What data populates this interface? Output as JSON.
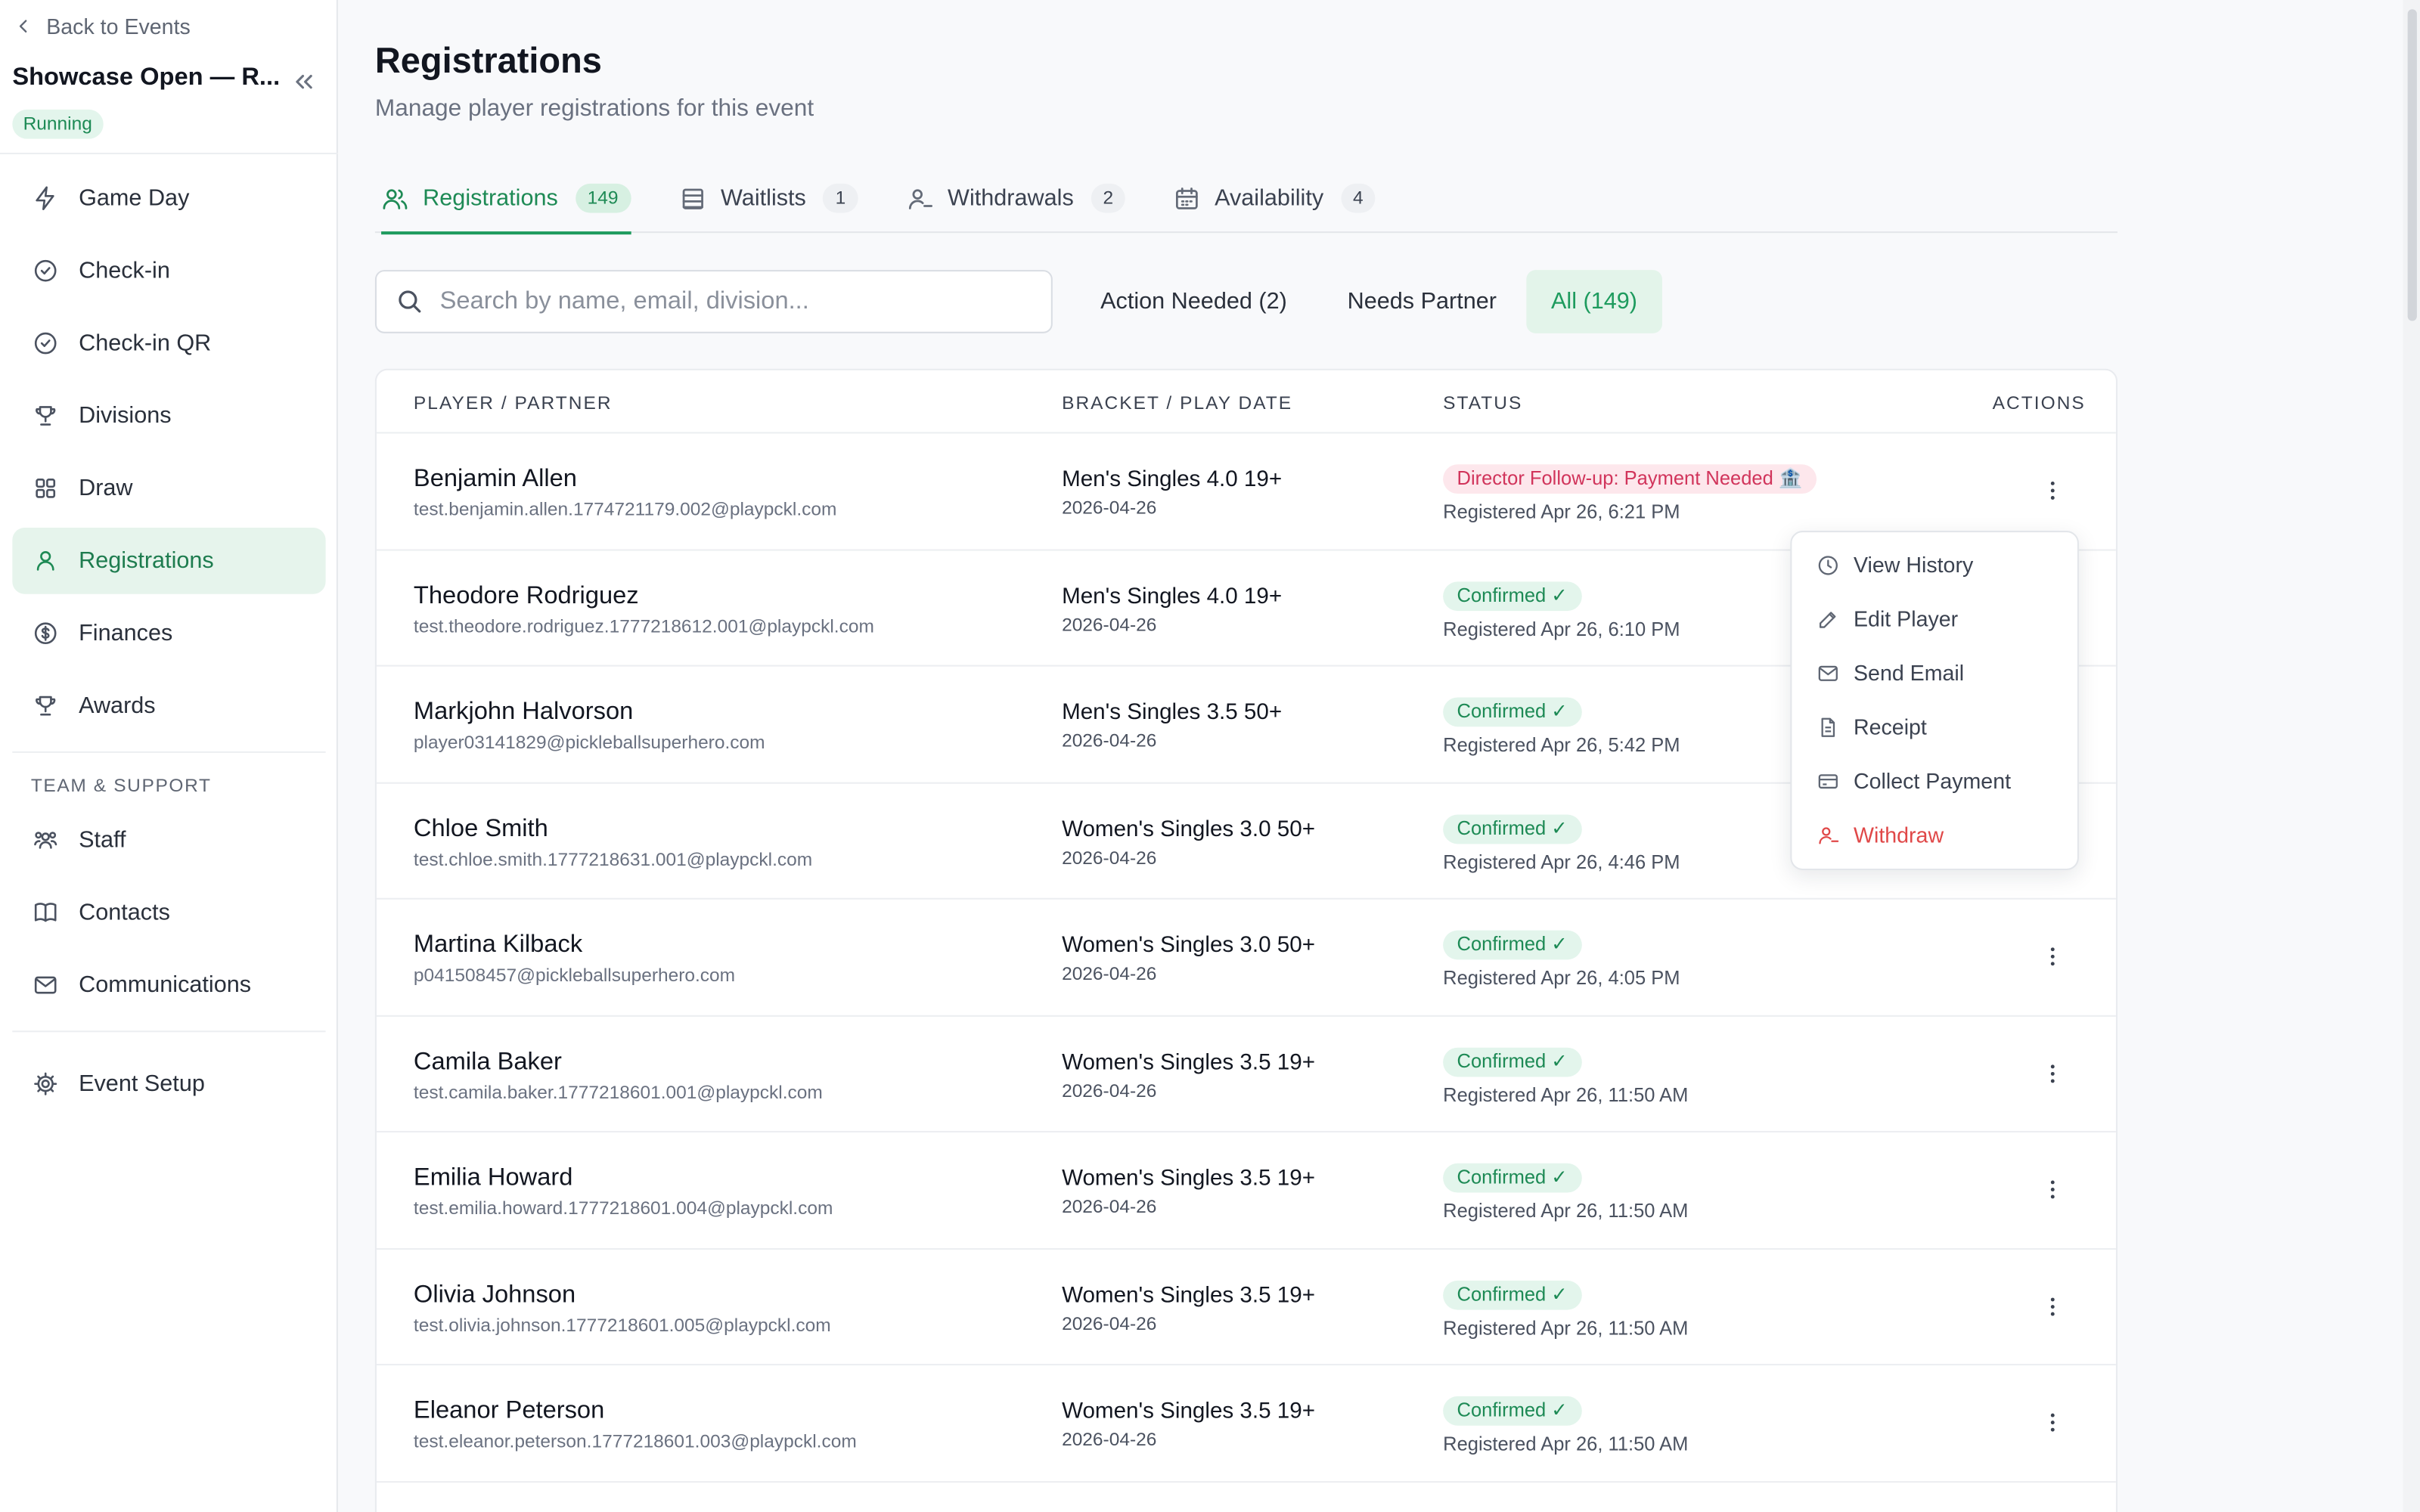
{
  "sidebar": {
    "back_label": "Back to Events",
    "event_title": "Showcase Open — R...",
    "event_status": "Running",
    "section_label": "TEAM & SUPPORT",
    "items": [
      {
        "label": "Game Day",
        "icon": "bolt-icon"
      },
      {
        "label": "Check-in",
        "icon": "check-circle-icon"
      },
      {
        "label": "Check-in QR",
        "icon": "check-circle-icon"
      },
      {
        "label": "Divisions",
        "icon": "trophy-icon"
      },
      {
        "label": "Draw",
        "icon": "grid-icon"
      },
      {
        "label": "Registrations",
        "icon": "user-icon",
        "active": true
      },
      {
        "label": "Finances",
        "icon": "dollar-icon"
      },
      {
        "label": "Awards",
        "icon": "trophy-icon"
      },
      {
        "label": "Staff",
        "icon": "team-icon"
      },
      {
        "label": "Contacts",
        "icon": "book-icon"
      },
      {
        "label": "Communications",
        "icon": "mail-icon"
      },
      {
        "label": "Event Setup",
        "icon": "gear-icon"
      }
    ]
  },
  "header": {
    "title": "Registrations",
    "subtitle": "Manage player registrations for this event"
  },
  "tabs": [
    {
      "label": "Registrations",
      "count": "149",
      "icon": "users-icon",
      "active": true
    },
    {
      "label": "Waitlists",
      "count": "1",
      "icon": "list-icon"
    },
    {
      "label": "Withdrawals",
      "count": "2",
      "icon": "user-minus-icon"
    },
    {
      "label": "Availability",
      "count": "4",
      "icon": "calendar-icon"
    }
  ],
  "search": {
    "placeholder": "Search by name, email, division...",
    "value": ""
  },
  "filters": [
    {
      "label": "Action Needed  (2)"
    },
    {
      "label": "Needs Partner"
    },
    {
      "label": "All  (149)",
      "active": true
    }
  ],
  "table": {
    "columns": [
      "PLAYER / PARTNER",
      "BRACKET / PLAY DATE",
      "STATUS",
      "ACTIONS"
    ],
    "rows": [
      {
        "name": "Benjamin Allen",
        "email": "test.benjamin.allen.1774721179.002@playpckl.com",
        "bracket": "Men's Singles 4.0 19+",
        "date": "2026-04-26",
        "status": "Director Follow-up: Payment Needed 🏦",
        "status_type": "warn",
        "registered": "Registered Apr 26, 6:21 PM"
      },
      {
        "name": "Theodore Rodriguez",
        "email": "test.theodore.rodriguez.1777218612.001@playpckl.com",
        "bracket": "Men's Singles 4.0 19+",
        "date": "2026-04-26",
        "status": "Confirmed ✓",
        "status_type": "ok",
        "registered": "Registered Apr 26, 6:10 PM"
      },
      {
        "name": "Markjohn Halvorson",
        "email": "player03141829@pickleballsuperhero.com",
        "bracket": "Men's Singles 3.5 50+",
        "date": "2026-04-26",
        "status": "Confirmed ✓",
        "status_type": "ok",
        "registered": "Registered Apr 26, 5:42 PM"
      },
      {
        "name": "Chloe Smith",
        "email": "test.chloe.smith.1777218631.001@playpckl.com",
        "bracket": "Women's Singles 3.0 50+",
        "date": "2026-04-26",
        "status": "Confirmed ✓",
        "status_type": "ok",
        "registered": "Registered Apr 26, 4:46 PM"
      },
      {
        "name": "Martina Kilback",
        "email": "p041508457@pickleballsuperhero.com",
        "bracket": "Women's Singles 3.0 50+",
        "date": "2026-04-26",
        "status": "Confirmed ✓",
        "status_type": "ok",
        "registered": "Registered Apr 26, 4:05 PM"
      },
      {
        "name": "Camila Baker",
        "email": "test.camila.baker.1777218601.001@playpckl.com",
        "bracket": "Women's Singles 3.5 19+",
        "date": "2026-04-26",
        "status": "Confirmed ✓",
        "status_type": "ok",
        "registered": "Registered Apr 26, 11:50 AM"
      },
      {
        "name": "Emilia Howard",
        "email": "test.emilia.howard.1777218601.004@playpckl.com",
        "bracket": "Women's Singles 3.5 19+",
        "date": "2026-04-26",
        "status": "Confirmed ✓",
        "status_type": "ok",
        "registered": "Registered Apr 26, 11:50 AM"
      },
      {
        "name": "Olivia Johnson",
        "email": "test.olivia.johnson.1777218601.005@playpckl.com",
        "bracket": "Women's Singles 3.5 19+",
        "date": "2026-04-26",
        "status": "Confirmed ✓",
        "status_type": "ok",
        "registered": "Registered Apr 26, 11:50 AM"
      },
      {
        "name": "Eleanor Peterson",
        "email": "test.eleanor.peterson.1777218601.003@playpckl.com",
        "bracket": "Women's Singles 3.5 19+",
        "date": "2026-04-26",
        "status": "Confirmed ✓",
        "status_type": "ok",
        "registered": "Registered Apr 26, 11:50 AM"
      }
    ]
  },
  "actions_menu": {
    "items": [
      {
        "label": "View History",
        "icon": "clock-icon"
      },
      {
        "label": "Edit Player",
        "icon": "edit-icon"
      },
      {
        "label": "Send Email",
        "icon": "mail-icon"
      },
      {
        "label": "Receipt",
        "icon": "file-icon"
      },
      {
        "label": "Collect Payment",
        "icon": "card-icon"
      },
      {
        "label": "Withdraw",
        "icon": "user-minus-icon",
        "danger": true
      }
    ]
  },
  "colors": {
    "accent": "#1e9b5e",
    "danger": "#e04848",
    "warn_badge": "#d1345b"
  }
}
